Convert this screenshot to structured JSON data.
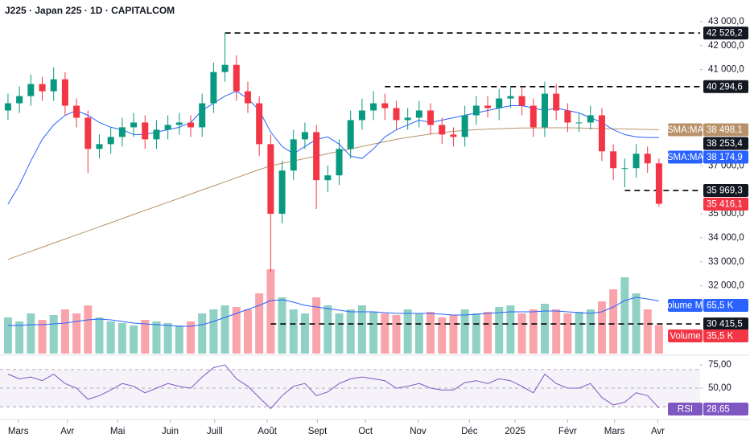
{
  "chart_data": {
    "type": "candlestick",
    "title": "J225 · Japan 225 · 1D · CAPITALCOM",
    "x": [
      0,
      1,
      2,
      3,
      4,
      5,
      6,
      7,
      8,
      9,
      10,
      11,
      12,
      13,
      14,
      15,
      16,
      17,
      18,
      19,
      20,
      21,
      22,
      23,
      24,
      25,
      26,
      27,
      28,
      29,
      30,
      31,
      32,
      33,
      34,
      35,
      36,
      37,
      38,
      39,
      40,
      41,
      42,
      43,
      44,
      45,
      46,
      47,
      48,
      49,
      50,
      51,
      52,
      53,
      54,
      55,
      56,
      57
    ],
    "xlim": [
      -0.7,
      60.6
    ],
    "xticks": [
      {
        "value": 0.9,
        "label": "Mars"
      },
      {
        "value": 5.2,
        "label": "Avr"
      },
      {
        "value": 9.6,
        "label": "Mai"
      },
      {
        "value": 14.2,
        "label": "Juin"
      },
      {
        "value": 18.1,
        "label": "Juill"
      },
      {
        "value": 22.7,
        "label": "Août"
      },
      {
        "value": 27.1,
        "label": "Sept"
      },
      {
        "value": 31.3,
        "label": "Oct"
      },
      {
        "value": 35.9,
        "label": "Nov"
      },
      {
        "value": 40.4,
        "label": "Déc"
      },
      {
        "value": 44.4,
        "label": "2025"
      },
      {
        "value": 49,
        "label": "Févr"
      },
      {
        "value": 53.1,
        "label": "Mars"
      },
      {
        "value": 56.9,
        "label": "Avr"
      }
    ],
    "ylim": [
      29180,
      43900
    ],
    "yticks": [
      {
        "value": 43000,
        "label": "43 000,0"
      },
      {
        "value": 42000,
        "label": "42 000,0"
      },
      {
        "value": 41000,
        "label": "41 000,0"
      },
      {
        "value": 37000,
        "label": "37 000,0"
      },
      {
        "value": 35000,
        "label": "35 000,0"
      },
      {
        "value": 34000,
        "label": "34 000,0"
      },
      {
        "value": 33000,
        "label": "33 000,0"
      },
      {
        "value": 32000,
        "label": "32 000,0"
      }
    ],
    "up_color": "#089981",
    "down_color": "#f23645",
    "open": [
      39300,
      39600,
      39900,
      40400,
      40100,
      40600,
      39500,
      39000,
      37700,
      37900,
      38200,
      38600,
      38800,
      38100,
      38500,
      38700,
      38800,
      38600,
      39600,
      40900,
      41200,
      40100,
      39600,
      37900,
      35000,
      36800,
      38100,
      38400,
      36400,
      36600,
      37700,
      38900,
      39300,
      39600,
      39400,
      38900,
      39000,
      39300,
      38700,
      38300,
      38200,
      39100,
      39500,
      39400,
      39800,
      39900,
      39500,
      38600,
      40000,
      39300,
      38800,
      38800,
      39100,
      37600,
      36900,
      36900,
      37500,
      37100
    ],
    "high": [
      40000,
      40300,
      40800,
      40700,
      41100,
      40900,
      39800,
      39300,
      38300,
      38600,
      39000,
      39200,
      39100,
      38900,
      39100,
      39200,
      39100,
      40000,
      41300,
      42526.2,
      41600,
      40500,
      39900,
      38300,
      37200,
      38500,
      38800,
      38700,
      37000,
      38100,
      39300,
      39800,
      40100,
      40000,
      39700,
      39400,
      39700,
      39600,
      39000,
      38600,
      39500,
      39900,
      39900,
      40200,
      40300,
      40300,
      39800,
      40500,
      40400,
      39600,
      39200,
      39500,
      39400,
      37900,
      37300,
      37900,
      37800,
      37300
    ],
    "low": [
      38900,
      39200,
      39500,
      39700,
      39700,
      39100,
      38600,
      36700,
      37300,
      37500,
      37800,
      38200,
      37700,
      37700,
      38100,
      38300,
      38200,
      38200,
      39200,
      40500,
      39700,
      39200,
      37400,
      32600,
      34600,
      36400,
      37700,
      35200,
      35900,
      36200,
      37300,
      38500,
      38900,
      38900,
      38500,
      38500,
      38600,
      38300,
      37900,
      37800,
      37800,
      38700,
      39000,
      38900,
      39400,
      39100,
      38200,
      38200,
      38900,
      38400,
      38400,
      38500,
      37200,
      36400,
      36100,
      36500,
      36700,
      35300
    ],
    "close": [
      39600,
      39900,
      40400,
      40100,
      40600,
      39500,
      39000,
      37700,
      37900,
      38200,
      38600,
      38800,
      38100,
      38500,
      38700,
      38800,
      38600,
      39600,
      40900,
      41200,
      40100,
      39600,
      37900,
      35000,
      36800,
      38100,
      38400,
      36400,
      36600,
      37700,
      38900,
      39300,
      39600,
      39400,
      38900,
      39000,
      39300,
      38700,
      38300,
      38200,
      39100,
      39500,
      39400,
      39800,
      39900,
      39500,
      38600,
      40000,
      39300,
      38800,
      38800,
      39100,
      37600,
      36900,
      36900,
      37500,
      37100,
      35416.1
    ],
    "last_label": {
      "value": 35416.1,
      "label": "35 416,1",
      "color": "#f23645"
    },
    "levels": [
      {
        "value": 42526.2,
        "label": "42 526,2",
        "from": 19
      },
      {
        "value": 40294.6,
        "label": "40 294,6",
        "from": 33
      },
      {
        "value": 38253.4,
        "label": "38 253,4"
      },
      {
        "value": 35969.3,
        "label": "35 969,3",
        "from": 54
      },
      {
        "value": 30415.5,
        "label": "30 415,5",
        "from": 23
      }
    ],
    "overlays": [
      {
        "name": "SMA:MA",
        "color": "#b8926a",
        "values": [
          33100,
          33270,
          33440,
          33610,
          33780,
          33950,
          34120,
          34290,
          34460,
          34630,
          34800,
          34970,
          35140,
          35310,
          35480,
          35650,
          35820,
          35990,
          36160,
          36330,
          36500,
          36670,
          36840,
          37000,
          37100,
          37200,
          37300,
          37400,
          37500,
          37600,
          37700,
          37800,
          37900,
          38000,
          38100,
          38180,
          38250,
          38320,
          38380,
          38430,
          38470,
          38500,
          38520,
          38540,
          38560,
          38570,
          38570,
          38580,
          38580,
          38580,
          38570,
          38560,
          38550,
          38540,
          38530,
          38520,
          38510,
          38500
        ],
        "last_label": {
          "value": 38498.1,
          "label": "38 498,1"
        }
      },
      {
        "name": "SMA:MA",
        "color": "#2962ff",
        "values": [
          35400,
          36200,
          37200,
          38100,
          38700,
          39100,
          39300,
          39100,
          38800,
          38600,
          38500,
          38300,
          38300,
          38400,
          38500,
          38600,
          38800,
          39300,
          39600,
          39900,
          40100,
          39800,
          39300,
          38400,
          37800,
          37500,
          37800,
          38100,
          38200,
          37900,
          37400,
          37300,
          37700,
          38200,
          38500,
          38700,
          38900,
          38800,
          38900,
          39000,
          39100,
          39200,
          39300,
          39400,
          39500,
          39500,
          39400,
          39300,
          39400,
          39300,
          39200,
          39000,
          38800,
          38500,
          38300,
          38200,
          38175,
          38174.9
        ],
        "last_label": {
          "value": 38174.9,
          "label": "38 174,9"
        }
      }
    ],
    "volume": {
      "name": "Volume",
      "vlim": [
        0,
        440
      ],
      "values": [
        45,
        40,
        50,
        42,
        48,
        55,
        50,
        60,
        45,
        40,
        38,
        35,
        42,
        40,
        38,
        35,
        40,
        50,
        55,
        60,
        58,
        55,
        75,
        105,
        70,
        55,
        50,
        70,
        60,
        50,
        55,
        60,
        52,
        50,
        48,
        55,
        50,
        52,
        45,
        48,
        55,
        50,
        52,
        58,
        60,
        50,
        55,
        62,
        55,
        50,
        52,
        55,
        65,
        80,
        95,
        75,
        55,
        35.5
      ],
      "last_label": {
        "value": 35.5,
        "label": "35,5 K",
        "color": "#f23645"
      },
      "ma": {
        "name": "Volume MA",
        "color": "#2962ff",
        "values": [
          35,
          35,
          36,
          36,
          37,
          38,
          40,
          42,
          43,
          42,
          40,
          38,
          37,
          36,
          35,
          34,
          34,
          36,
          40,
          45,
          50,
          55,
          60,
          66,
          67,
          64,
          60,
          58,
          56,
          54,
          52,
          52,
          52,
          51,
          50,
          50,
          50,
          50,
          49,
          48,
          48,
          49,
          50,
          51,
          52,
          52,
          52,
          53,
          53,
          52,
          51,
          50,
          52,
          58,
          66,
          70,
          68,
          65.5
        ],
        "last_label": {
          "value": 65.5,
          "label": "65,5 K"
        }
      }
    },
    "rsi": {
      "name": "RSI",
      "color": "#7e57c2",
      "ylim": [
        18.1,
        82.8
      ],
      "yticks": [
        {
          "value": 75,
          "label": "75,00"
        },
        {
          "value": 50,
          "label": "50,00"
        }
      ],
      "bands": [
        70,
        50,
        30
      ],
      "values": [
        65,
        60,
        62,
        58,
        65,
        55,
        50,
        38,
        42,
        48,
        55,
        52,
        45,
        50,
        55,
        52,
        50,
        62,
        72,
        75,
        60,
        52,
        40,
        28,
        42,
        52,
        55,
        42,
        46,
        55,
        60,
        62,
        60,
        58,
        50,
        52,
        55,
        50,
        48,
        48,
        56,
        58,
        55,
        60,
        58,
        52,
        45,
        65,
        55,
        50,
        50,
        55,
        40,
        32,
        35,
        45,
        42,
        28.65
      ],
      "last_label": {
        "value": 28.65,
        "label": "28,65"
      }
    }
  }
}
